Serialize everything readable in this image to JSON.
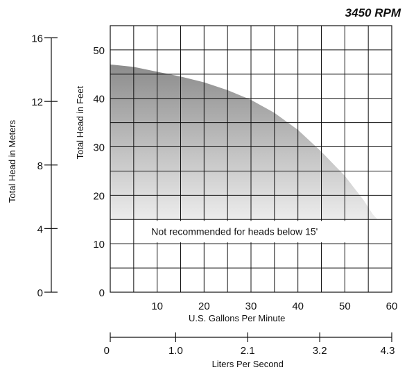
{
  "chart_data": {
    "type": "area",
    "title": "3450 RPM",
    "annotation": "Not recommended for heads below 15'",
    "x_gpm": {
      "label": "U.S. Gallons Per Minute",
      "range": [
        0,
        60
      ],
      "tick_labels": [
        "10",
        "20",
        "30",
        "40",
        "50",
        "60"
      ],
      "tick_values": [
        10,
        20,
        30,
        40,
        50,
        60
      ]
    },
    "x_lps": {
      "label": "Liters Per Second",
      "tick_labels": [
        "0",
        "1.0",
        "2.1",
        "3.2",
        "4.3"
      ],
      "tick_values_gpm": [
        0,
        15.85,
        33.28,
        50.72,
        68.16
      ]
    },
    "y_feet": {
      "label": "Total Head in Feet",
      "range": [
        0,
        55
      ],
      "tick_labels": [
        "0",
        "10",
        "20",
        "30",
        "40",
        "50"
      ],
      "tick_values": [
        0,
        10,
        20,
        30,
        40,
        50
      ]
    },
    "y_meters": {
      "label": "Total Head in Meters",
      "tick_labels": [
        "0",
        "4",
        "8",
        "12",
        "16"
      ],
      "tick_values": [
        0,
        4,
        8,
        12,
        16
      ]
    },
    "grid": true,
    "cutoff_head_ft": 15,
    "series": [
      {
        "x": [
          0,
          5,
          10,
          15,
          20,
          25,
          30,
          35,
          40,
          45,
          48,
          50,
          52,
          54,
          56,
          57
        ],
        "y": [
          47,
          46.5,
          45.5,
          44.5,
          43.3,
          41.7,
          39.7,
          37,
          33.5,
          29,
          26,
          24,
          21.5,
          19,
          16,
          15
        ]
      }
    ],
    "colors": {
      "fill_top": "#8c8c8c",
      "fill_bottom": "#ececec",
      "grid": "#111111"
    }
  }
}
